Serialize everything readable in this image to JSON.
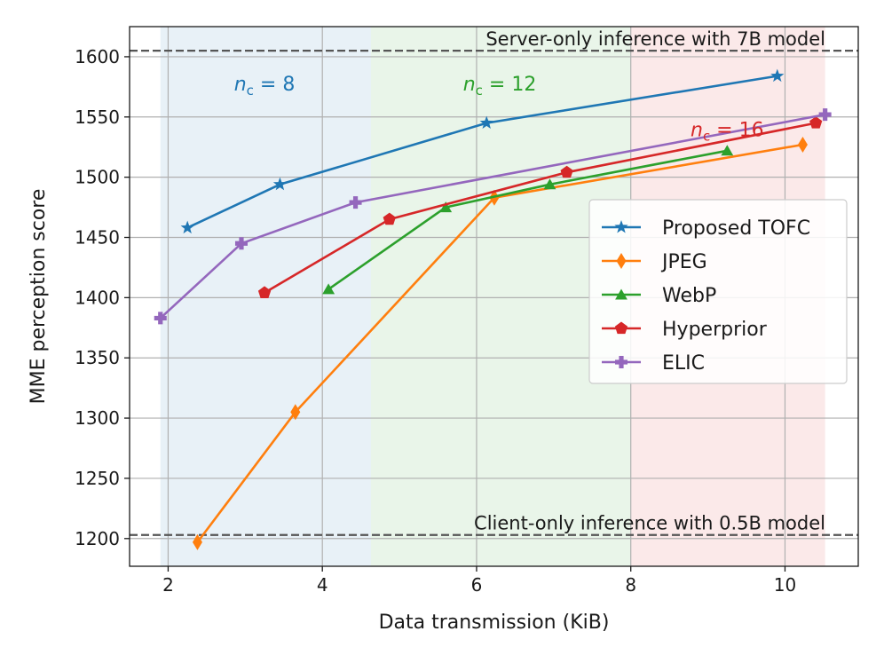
{
  "chart_data": {
    "type": "line",
    "xlabel": "Data transmission (KiB)",
    "ylabel": "MME perception score",
    "xlim": [
      1.5,
      10.95
    ],
    "ylim": [
      1177,
      1625
    ],
    "xticks": [
      2,
      4,
      6,
      8,
      10
    ],
    "yticks": [
      1200,
      1250,
      1300,
      1350,
      1400,
      1450,
      1500,
      1550,
      1600
    ],
    "grid": true,
    "legend_position": "center-right",
    "regions": [
      {
        "label_prefix": "n",
        "label_sub": "c",
        "label_suffix": " = 8",
        "from": 1.9,
        "to": 4.63,
        "color": "#1f77b4",
        "label_x": 3.25,
        "label_y": 1572
      },
      {
        "label_prefix": "n",
        "label_sub": "c",
        "label_suffix": " = 12",
        "from": 4.63,
        "to": 8.0,
        "color": "#2ca02c",
        "label_x": 6.3,
        "label_y": 1572
      },
      {
        "label_prefix": "n",
        "label_sub": "c",
        "label_suffix": " = 16",
        "from": 8.0,
        "to": 10.52,
        "color": "#d62728",
        "label_x": 9.25,
        "label_y": 1534
      }
    ],
    "reference_lines": [
      {
        "label": "Server-only inference with 7B model",
        "y": 1605
      },
      {
        "label": "Client-only inference with 0.5B model",
        "y": 1203
      }
    ],
    "series": [
      {
        "name": "Proposed TOFC",
        "color": "#1f77b4",
        "marker": "star",
        "x": [
          2.25,
          3.45,
          6.13,
          9.9
        ],
        "y": [
          1458,
          1494,
          1545,
          1584
        ]
      },
      {
        "name": "JPEG",
        "color": "#ff7f0e",
        "marker": "diamond",
        "x": [
          2.38,
          3.65,
          6.23,
          10.23
        ],
        "y": [
          1197,
          1305,
          1483,
          1527
        ]
      },
      {
        "name": "WebP",
        "color": "#2ca02c",
        "marker": "triangle",
        "x": [
          4.08,
          5.6,
          6.95,
          9.25
        ],
        "y": [
          1407,
          1475,
          1494,
          1522
        ]
      },
      {
        "name": "Hyperprior",
        "color": "#d62728",
        "marker": "pentagon",
        "x": [
          3.25,
          4.87,
          7.17,
          10.4
        ],
        "y": [
          1404,
          1465,
          1504,
          1545
        ]
      },
      {
        "name": "ELIC",
        "color": "#9467bd",
        "marker": "plus",
        "x": [
          1.9,
          2.95,
          4.43,
          10.52
        ],
        "y": [
          1383,
          1445,
          1479,
          1552
        ]
      }
    ]
  }
}
